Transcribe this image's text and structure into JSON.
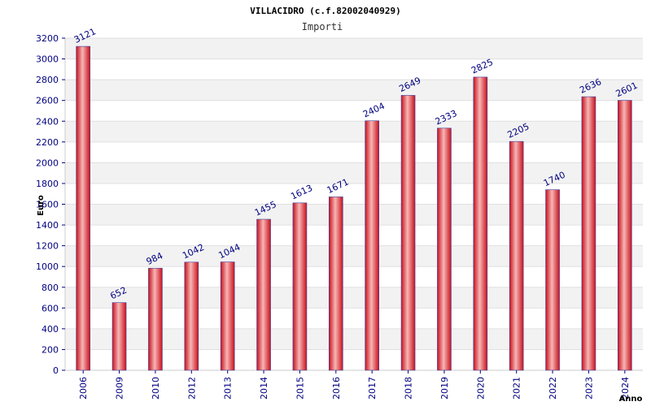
{
  "chart_data": {
    "type": "bar",
    "title": "VILLACIDRO (c.f.82002040929)",
    "subtitle": "Importi",
    "xlabel": "Anno",
    "ylabel": "Euro",
    "categories": [
      "2006",
      "2009",
      "2010",
      "2012",
      "2013",
      "2014",
      "2015",
      "2016",
      "2017",
      "2018",
      "2019",
      "2020",
      "2021",
      "2022",
      "2023",
      "2024"
    ],
    "values": [
      3121,
      652,
      984,
      1042,
      1044,
      1455,
      1613,
      1671,
      2404,
      2649,
      2333,
      2825,
      2205,
      1740,
      2636,
      2601
    ],
    "ylim": [
      0,
      3200
    ],
    "yticks": [
      0,
      200,
      400,
      600,
      800,
      1000,
      1200,
      1400,
      1600,
      1800,
      2000,
      2200,
      2400,
      2600,
      2800,
      3000,
      3200
    ],
    "grid": true,
    "legend": "none",
    "colors": {
      "bar_light": "#f7b6b6",
      "bar_mid": "#e8363b",
      "bar_dark": "#c8101a",
      "bar_edge": "#4040a0",
      "band_alt": "#f2f2f2",
      "ticks": "#000080"
    }
  }
}
